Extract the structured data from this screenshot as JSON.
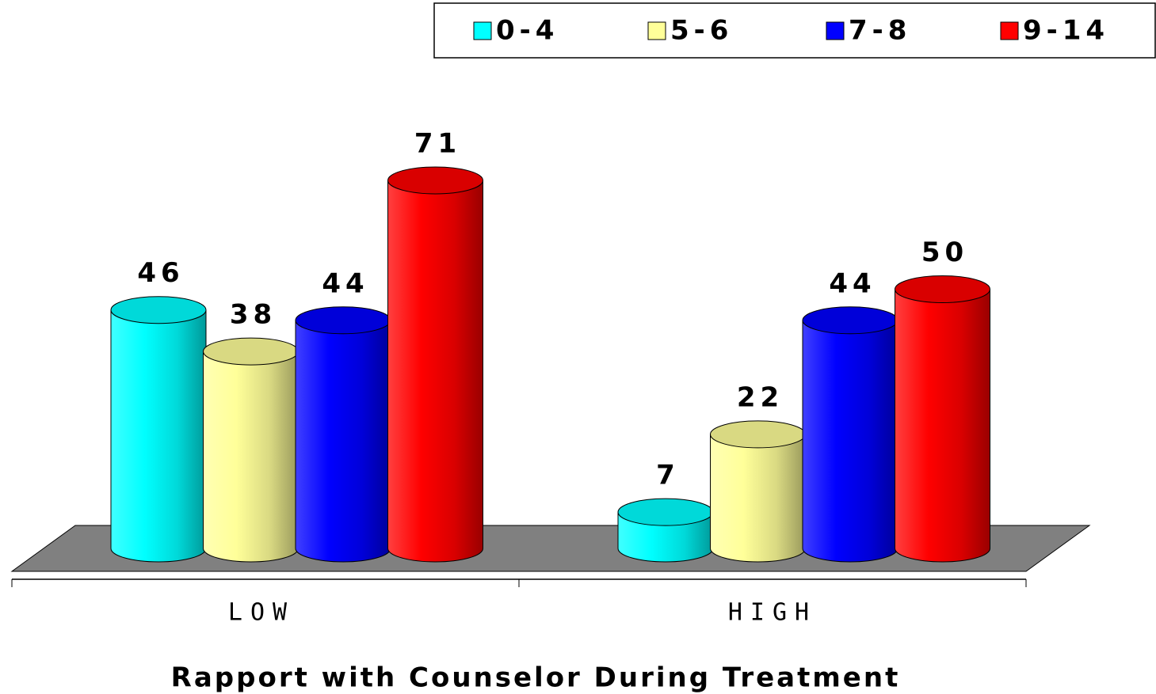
{
  "chart_data": {
    "type": "bar3d",
    "x_label": "Rapport with Counselor During Treatment",
    "categories": [
      "LOW",
      "HIGH"
    ],
    "series": [
      {
        "name": "0-4",
        "color": "#00ffff",
        "values": [
          46,
          7
        ]
      },
      {
        "name": "5-6",
        "color": "#ffff99",
        "values": [
          38,
          22
        ]
      },
      {
        "name": "7-8",
        "color": "#0000ff",
        "values": [
          44,
          44
        ]
      },
      {
        "name": "9-14",
        "color": "#ff0000",
        "values": [
          71,
          50
        ]
      }
    ],
    "legend": "top-right"
  }
}
